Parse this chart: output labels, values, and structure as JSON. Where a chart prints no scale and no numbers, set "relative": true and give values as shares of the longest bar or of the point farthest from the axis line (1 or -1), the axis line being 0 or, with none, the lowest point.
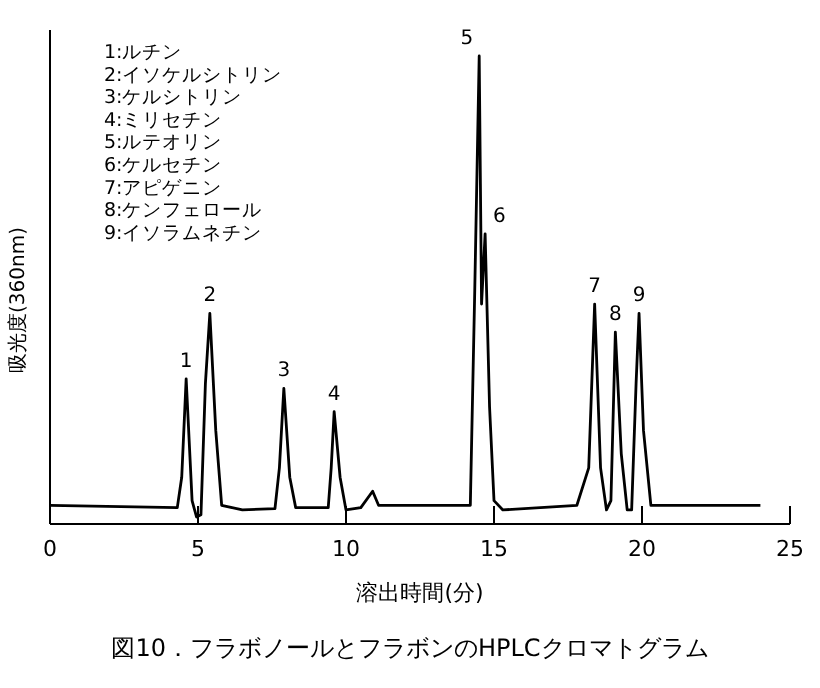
{
  "chart_data": {
    "type": "line",
    "relative": true,
    "title": "図10．フラボノールとフラボンのHPLCクロマトグラム",
    "xlabel": "溶出時間(分)",
    "ylabel": "吸光度(360nm)",
    "xlim": [
      0,
      25
    ],
    "xticks": [
      0,
      5,
      10,
      15,
      20,
      25
    ],
    "color": "#000000",
    "x": [
      0,
      4.3,
      4.45,
      4.6,
      4.8,
      4.95,
      5.1,
      5.25,
      5.4,
      5.6,
      5.8,
      6.5,
      7.6,
      7.75,
      7.9,
      8.1,
      8.3,
      9.4,
      9.5,
      9.6,
      9.8,
      10.0,
      10.5,
      10.9,
      11.1,
      12,
      14.2,
      14.35,
      14.5,
      14.58,
      14.7,
      14.85,
      15.0,
      15.3,
      17.8,
      18.2,
      18.4,
      18.6,
      18.8,
      18.95,
      19.1,
      19.3,
      19.5,
      19.65,
      19.8,
      19.9,
      20.05,
      20.3,
      24.0
    ],
    "values": [
      0.04,
      0.035,
      0.1,
      0.31,
      0.05,
      0.015,
      0.02,
      0.3,
      0.45,
      0.2,
      0.04,
      0.03,
      0.033,
      0.12,
      0.29,
      0.1,
      0.035,
      0.035,
      0.12,
      0.24,
      0.1,
      0.03,
      0.035,
      0.07,
      0.04,
      0.04,
      0.04,
      0.5,
      1,
      0.47,
      0.62,
      0.25,
      0.05,
      0.03,
      0.04,
      0.12,
      0.47,
      0.12,
      0.03,
      0.05,
      0.41,
      0.15,
      0.03,
      0.03,
      0.3,
      0.45,
      0.2,
      0.04,
      0.04
    ],
    "annotations": [
      "1:ルチン",
      "2:イソケルシトリン",
      "3:ケルシトリン",
      "4:ミリセチン",
      "5:ルテオリン",
      "6:ケルセチン",
      "7:アピゲニン",
      "8:ケンフェロール",
      "9:イソラムネチン",
      {
        "text": "1",
        "x": 4.6,
        "y": 0.31
      },
      {
        "text": "2",
        "x": 5.4,
        "y": 0.45
      },
      {
        "text": "3",
        "x": 7.9,
        "y": 0.29
      },
      {
        "text": "4",
        "x": 9.6,
        "y": 0.24
      },
      {
        "text": "5",
        "x": 14.5,
        "y": 1
      },
      {
        "text": "6",
        "x": 14.7,
        "y": 0.62
      },
      {
        "text": "7",
        "x": 18.4,
        "y": 0.47
      },
      {
        "text": "8",
        "x": 19.1,
        "y": 0.41
      },
      {
        "text": "9",
        "x": 19.9,
        "y": 0.45
      }
    ]
  }
}
